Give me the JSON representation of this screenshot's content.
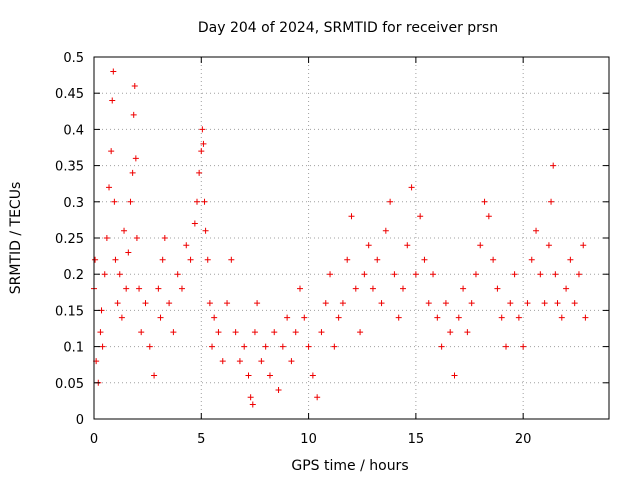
{
  "chart_data": {
    "type": "scatter",
    "title": "Day 204 of 2024, SRMTID for receiver prsn",
    "xlabel": "GPS time / hours",
    "ylabel": "SRMTID / TECUs",
    "xlim": [
      0,
      24
    ],
    "ylim": [
      0,
      0.5
    ],
    "xticks": [
      0,
      5,
      10,
      15,
      20
    ],
    "xtick_labels": [
      "0",
      "5",
      "10",
      "15",
      "20"
    ],
    "yticks": [
      0,
      0.05,
      0.1,
      0.15,
      0.2,
      0.25,
      0.3,
      0.35,
      0.4,
      0.45,
      0.5
    ],
    "ytick_labels": [
      "0",
      "0.05",
      "0.1",
      "0.15",
      "0.2",
      "0.25",
      "0.3",
      "0.35",
      "0.4",
      "0.45",
      "0.5"
    ],
    "grid": true,
    "marker": "+",
    "marker_color": "#ee0000",
    "series": [
      {
        "name": "SRMTID",
        "x": [
          0.0,
          0.05,
          0.1,
          0.2,
          0.3,
          0.35,
          0.4,
          0.5,
          0.6,
          0.7,
          0.8,
          0.85,
          0.9,
          0.95,
          1.0,
          1.1,
          1.2,
          1.3,
          1.4,
          1.5,
          1.6,
          1.7,
          1.8,
          1.85,
          1.9,
          1.95,
          2.0,
          2.1,
          2.2,
          2.4,
          2.6,
          2.8,
          3.0,
          3.1,
          3.2,
          3.3,
          3.5,
          3.7,
          3.9,
          4.1,
          4.3,
          4.5,
          4.7,
          4.8,
          4.9,
          5.0,
          5.05,
          5.1,
          5.15,
          5.2,
          5.3,
          5.4,
          5.5,
          5.6,
          5.8,
          6.0,
          6.2,
          6.4,
          6.6,
          6.8,
          7.0,
          7.2,
          7.3,
          7.4,
          7.5,
          7.6,
          7.8,
          8.0,
          8.2,
          8.4,
          8.6,
          8.8,
          9.0,
          9.2,
          9.4,
          9.6,
          9.8,
          10.0,
          10.2,
          10.4,
          10.6,
          10.8,
          11.0,
          11.2,
          11.4,
          11.6,
          11.8,
          12.0,
          12.2,
          12.4,
          12.6,
          12.8,
          13.0,
          13.2,
          13.4,
          13.6,
          13.8,
          14.0,
          14.2,
          14.4,
          14.6,
          14.8,
          15.0,
          15.2,
          15.4,
          15.6,
          15.8,
          16.0,
          16.2,
          16.4,
          16.6,
          16.8,
          17.0,
          17.2,
          17.4,
          17.6,
          17.8,
          18.0,
          18.2,
          18.4,
          18.6,
          18.8,
          19.0,
          19.2,
          19.4,
          19.6,
          19.8,
          20.0,
          20.2,
          20.4,
          20.6,
          20.8,
          21.0,
          21.2,
          21.3,
          21.4,
          21.5,
          21.6,
          21.8,
          22.0,
          22.2,
          22.4,
          22.6,
          22.8,
          22.9
        ],
        "y": [
          0.18,
          0.22,
          0.08,
          0.05,
          0.12,
          0.15,
          0.1,
          0.2,
          0.25,
          0.32,
          0.37,
          0.44,
          0.48,
          0.3,
          0.22,
          0.16,
          0.2,
          0.14,
          0.26,
          0.18,
          0.23,
          0.3,
          0.34,
          0.42,
          0.46,
          0.36,
          0.25,
          0.18,
          0.12,
          0.16,
          0.1,
          0.06,
          0.18,
          0.14,
          0.22,
          0.25,
          0.16,
          0.12,
          0.2,
          0.18,
          0.24,
          0.22,
          0.27,
          0.3,
          0.34,
          0.37,
          0.4,
          0.38,
          0.3,
          0.26,
          0.22,
          0.16,
          0.1,
          0.14,
          0.12,
          0.08,
          0.16,
          0.22,
          0.12,
          0.08,
          0.1,
          0.06,
          0.03,
          0.02,
          0.12,
          0.16,
          0.08,
          0.1,
          0.06,
          0.12,
          0.04,
          0.1,
          0.14,
          0.08,
          0.12,
          0.18,
          0.14,
          0.1,
          0.06,
          0.03,
          0.12,
          0.16,
          0.2,
          0.1,
          0.14,
          0.16,
          0.22,
          0.28,
          0.18,
          0.12,
          0.2,
          0.24,
          0.18,
          0.22,
          0.16,
          0.26,
          0.3,
          0.2,
          0.14,
          0.18,
          0.24,
          0.32,
          0.2,
          0.28,
          0.22,
          0.16,
          0.2,
          0.14,
          0.1,
          0.16,
          0.12,
          0.06,
          0.14,
          0.18,
          0.12,
          0.16,
          0.2,
          0.24,
          0.3,
          0.28,
          0.22,
          0.18,
          0.14,
          0.1,
          0.16,
          0.2,
          0.14,
          0.1,
          0.16,
          0.22,
          0.26,
          0.2,
          0.16,
          0.24,
          0.3,
          0.35,
          0.2,
          0.16,
          0.14,
          0.18,
          0.22,
          0.16,
          0.2,
          0.24,
          0.14
        ]
      }
    ],
    "annotations": [],
    "legend": "none"
  }
}
